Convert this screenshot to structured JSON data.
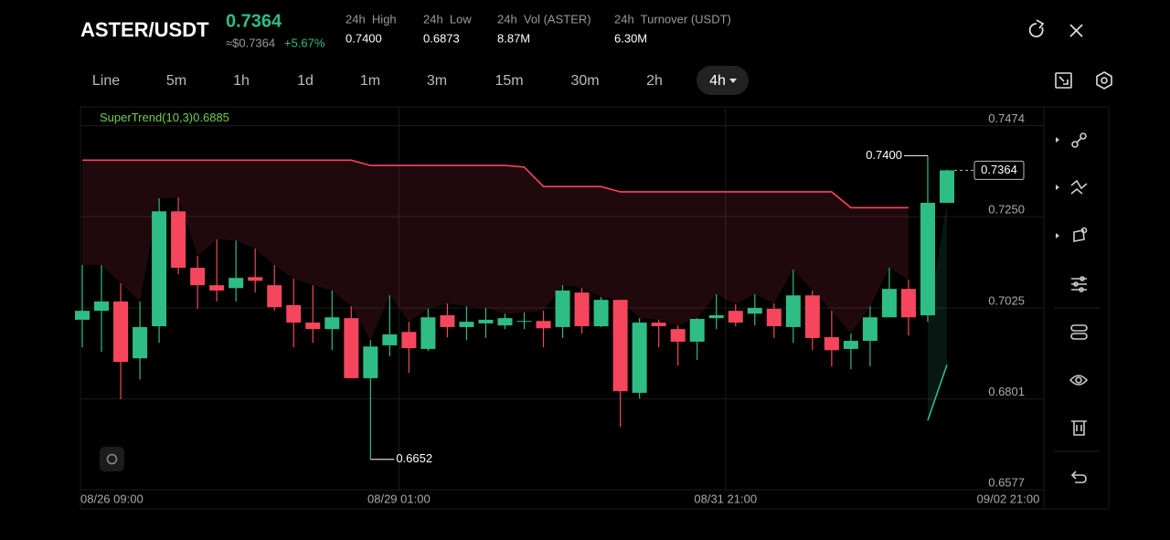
{
  "header": {
    "pair": "ASTER/USDT",
    "price": "0.7364",
    "price_usd": "≈$0.7364",
    "change": "+5.67%",
    "stats": [
      {
        "label": "24h  High",
        "value": "0.7400"
      },
      {
        "label": "24h  Low",
        "value": "0.6873"
      },
      {
        "label": "24h  Vol (ASTER)",
        "value": "8.87M"
      },
      {
        "label": "24h  Turnover (USDT)",
        "value": "6.30M"
      }
    ]
  },
  "timeframes": [
    "Line",
    "5m",
    "1h",
    "1d",
    "1m",
    "3m",
    "15m",
    "30m",
    "2h",
    "4h"
  ],
  "active_timeframe": "4h",
  "chart_data": {
    "type": "candlestick",
    "categories": [
      "08/26 09:00",
      null,
      null,
      null,
      null,
      null,
      null,
      null,
      null,
      null,
      null,
      null,
      null,
      null,
      null,
      null,
      "08/29 01:00",
      null,
      null,
      null,
      null,
      null,
      null,
      null,
      null,
      null,
      null,
      null,
      null,
      null,
      null,
      null,
      null,
      "08/31 21:00",
      null,
      null,
      null,
      null,
      null,
      null,
      null,
      null,
      null,
      null,
      null,
      "09/02 21:00"
    ],
    "open": [
      0.6996,
      0.7018,
      0.7041,
      0.6901,
      0.698,
      0.7263,
      0.7124,
      0.7081,
      0.7074,
      0.7101,
      0.7081,
      0.7032,
      0.6989,
      0.6973,
      0.7,
      0.6852,
      0.6933,
      0.6966,
      0.6924,
      0.7007,
      0.6978,
      0.6987,
      0.6982,
      0.6991,
      0.6993,
      0.6978,
      0.7063,
      0.698,
      0.7045,
      0.6816,
      0.6989,
      0.6973,
      0.6942,
      0.7,
      0.7018,
      0.7011,
      0.7023,
      0.6978,
      0.7056,
      0.6953,
      0.6924,
      0.6944,
      0.7002,
      0.7072,
      0.7007,
      0.7284
    ],
    "high": [
      0.7131,
      0.7131,
      0.7086,
      0.7041,
      0.7295,
      0.7297,
      0.7153,
      0.7194,
      0.7191,
      0.7171,
      0.7131,
      0.7097,
      0.7081,
      0.7068,
      0.7029,
      0.6946,
      0.7056,
      0.6991,
      0.7023,
      0.7036,
      0.7029,
      0.7025,
      0.7011,
      0.7014,
      0.7018,
      0.7081,
      0.7074,
      0.7052,
      0.7045,
      0.7,
      0.6996,
      0.6982,
      0.7,
      0.7059,
      0.7034,
      0.7059,
      0.7036,
      0.7119,
      0.7068,
      0.7018,
      0.6962,
      0.7029,
      0.7124,
      0.7095,
      0.74,
      0.7366
    ],
    "low": [
      0.6928,
      0.6917,
      0.68,
      0.6849,
      0.6939,
      0.7108,
      0.7023,
      0.7041,
      0.7041,
      0.7063,
      0.7018,
      0.6928,
      0.6939,
      0.6921,
      0.6852,
      0.6652,
      0.6906,
      0.6865,
      0.6919,
      0.6953,
      0.6946,
      0.6951,
      0.6973,
      0.6973,
      0.6928,
      0.6951,
      0.6962,
      0.6978,
      0.6732,
      0.6802,
      0.6928,
      0.6883,
      0.6897,
      0.6973,
      0.698,
      0.6982,
      0.6951,
      0.6939,
      0.6921,
      0.6881,
      0.6874,
      0.6881,
      0.7002,
      0.6957,
      0.6991,
      0.7284
    ],
    "close": [
      0.7018,
      0.7041,
      0.6892,
      0.6978,
      0.7263,
      0.7124,
      0.7081,
      0.7068,
      0.7099,
      0.7092,
      0.7027,
      0.6989,
      0.6973,
      0.7002,
      0.6852,
      0.693,
      0.696,
      0.6926,
      0.7002,
      0.6978,
      0.6991,
      0.6996,
      0.7,
      0.6993,
      0.6975,
      0.7068,
      0.698,
      0.7045,
      0.682,
      0.6989,
      0.698,
      0.6942,
      0.6998,
      0.7007,
      0.6989,
      0.7025,
      0.698,
      0.7056,
      0.6951,
      0.6921,
      0.6944,
      0.7002,
      0.7072,
      0.7002,
      0.7284,
      0.7364
    ],
    "up_color": "#2ebd85",
    "down_color": "#f6465d",
    "series": [
      {
        "name": "SuperTrend(10,3)",
        "values": [
          0.7389,
          0.7389,
          0.7389,
          0.7389,
          0.7389,
          0.7389,
          0.7389,
          0.7389,
          0.7389,
          0.7389,
          0.7389,
          0.7389,
          0.7389,
          0.7389,
          0.7389,
          0.7376,
          0.7376,
          0.7376,
          0.7376,
          0.7376,
          0.7376,
          0.7376,
          0.7376,
          0.7372,
          0.7324,
          0.7324,
          0.7324,
          0.7324,
          0.7311,
          0.7311,
          0.7311,
          0.7311,
          0.7311,
          0.7311,
          0.7311,
          0.7311,
          0.7311,
          0.7311,
          0.7311,
          0.7311,
          0.7272,
          0.7272,
          0.7272,
          0.7272,
          0.6748,
          0.6885
        ],
        "colors": [
          "#f6465d",
          "#f6465d",
          "#f6465d",
          "#f6465d",
          "#f6465d",
          "#f6465d",
          "#f6465d",
          "#f6465d",
          "#f6465d",
          "#f6465d",
          "#f6465d",
          "#f6465d",
          "#f6465d",
          "#f6465d",
          "#f6465d",
          "#f6465d",
          "#f6465d",
          "#f6465d",
          "#f6465d",
          "#f6465d",
          "#f6465d",
          "#f6465d",
          "#f6465d",
          "#f6465d",
          "#f6465d",
          "#f6465d",
          "#f6465d",
          "#f6465d",
          "#f6465d",
          "#f6465d",
          "#f6465d",
          "#f6465d",
          "#f6465d",
          "#f6465d",
          "#f6465d",
          "#f6465d",
          "#f6465d",
          "#f6465d",
          "#f6465d",
          "#f6465d",
          "#f6465d",
          "#f6465d",
          "#f6465d",
          "#f6465d",
          "#2ebd85",
          "#2ebd85"
        ]
      }
    ],
    "annotations": [
      {
        "value": 0.74,
        "label": "0.7400"
      },
      {
        "value": 0.6652,
        "label": "0.6652"
      }
    ],
    "ylim": [
      0.6575,
      0.7518
    ],
    "yticks": [
      0.7474,
      {
        "value": 0.725,
        "label": "0.7250"
      },
      0.7025,
      0.6801,
      0.6577
    ],
    "grid": true
  }
}
